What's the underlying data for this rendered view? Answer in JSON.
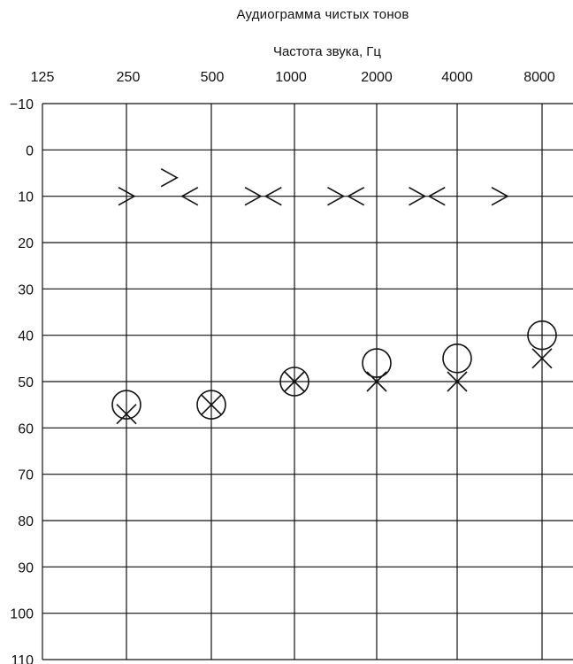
{
  "chart_data": {
    "type": "scatter",
    "title": "Аудиограмма чистых тонов",
    "xlabel": "Частота звука, Гц",
    "ylabel": "",
    "x_tick_labels": [
      "125",
      "250",
      "500",
      "1000",
      "2000",
      "4000",
      "8000"
    ],
    "y_tick_labels": [
      "−10",
      "0",
      "10",
      "20",
      "30",
      "40",
      "50",
      "60",
      "70",
      "80",
      "90",
      "100",
      "110"
    ],
    "ylim": [
      -10,
      110
    ],
    "y_reversed": true,
    "grid": true,
    "series": [
      {
        "marker": "circle",
        "points": [
          {
            "x": 250,
            "y": 55
          },
          {
            "x": 500,
            "y": 55
          },
          {
            "x": 1000,
            "y": 50
          },
          {
            "x": 2000,
            "y": 46
          },
          {
            "x": 4000,
            "y": 45
          },
          {
            "x": 8000,
            "y": 40
          }
        ]
      },
      {
        "marker": "cross",
        "points": [
          {
            "x": 250,
            "y": 57
          },
          {
            "x": 500,
            "y": 55
          },
          {
            "x": 1000,
            "y": 50
          },
          {
            "x": 2000,
            "y": 50
          },
          {
            "x": 4000,
            "y": 50
          },
          {
            "x": 8000,
            "y": 45
          }
        ]
      },
      {
        "marker": "greater-than",
        "points": [
          {
            "x": 250,
            "y": 10
          },
          {
            "x": 354,
            "y": 6
          },
          {
            "x": 707,
            "y": 10
          },
          {
            "x": 1414,
            "y": 10
          },
          {
            "x": 2828,
            "y": 10
          },
          {
            "x": 5657,
            "y": 10
          }
        ]
      },
      {
        "marker": "less-than",
        "points": [
          {
            "x": 420,
            "y": 10
          },
          {
            "x": 840,
            "y": 10
          },
          {
            "x": 1682,
            "y": 10
          },
          {
            "x": 3364,
            "y": 10
          }
        ]
      }
    ]
  }
}
